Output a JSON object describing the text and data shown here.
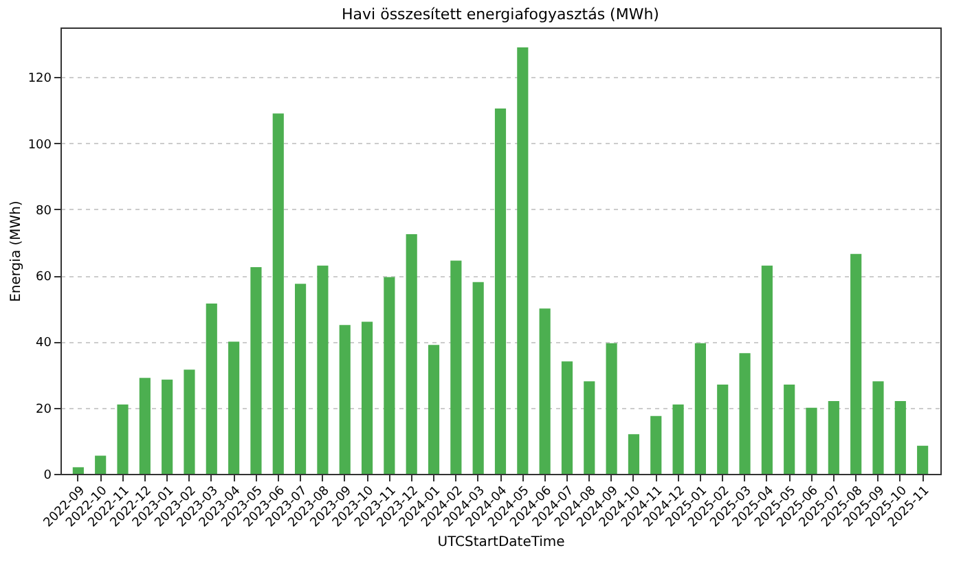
{
  "chart_data": {
    "type": "bar",
    "title": "Havi összesített energiafogyasztás (MWh)",
    "xlabel": "UTCStartDateTime",
    "ylabel": "Energia (MWh)",
    "categories": [
      "2022-09",
      "2022-10",
      "2022-11",
      "2022-12",
      "2023-01",
      "2023-02",
      "2023-03",
      "2023-04",
      "2023-05",
      "2023-06",
      "2023-07",
      "2023-08",
      "2023-09",
      "2023-10",
      "2023-11",
      "2023-12",
      "2024-01",
      "2024-02",
      "2024-03",
      "2024-04",
      "2024-05",
      "2024-06",
      "2024-07",
      "2024-08",
      "2024-09",
      "2024-10",
      "2024-11",
      "2024-12",
      "2025-01",
      "2025-02",
      "2025-03",
      "2025-04",
      "2025-05",
      "2025-06",
      "2025-07",
      "2025-08",
      "2025-09",
      "2025-10",
      "2025-11"
    ],
    "values": [
      2,
      5.5,
      21,
      29,
      28.5,
      31.5,
      51.5,
      40,
      62.5,
      109,
      57.5,
      63,
      45,
      46,
      59.5,
      72.5,
      39,
      64.5,
      58,
      110.5,
      129,
      50,
      34,
      28,
      39.5,
      12,
      17.5,
      21,
      39.5,
      27,
      36.5,
      63,
      27,
      20,
      22,
      66.5,
      28,
      22,
      8.5
    ],
    "color": "#4caf50",
    "ylim": [
      0,
      135
    ],
    "yticks": [
      0,
      20,
      40,
      60,
      80,
      100,
      120
    ],
    "grid": "y"
  }
}
